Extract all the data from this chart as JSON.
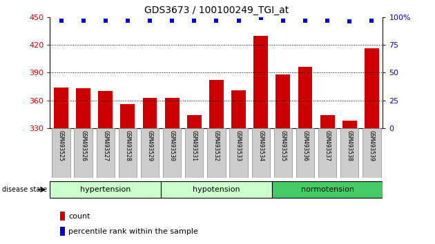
{
  "title": "GDS3673 / 100100249_TGI_at",
  "samples": [
    "GSM493525",
    "GSM493526",
    "GSM493527",
    "GSM493528",
    "GSM493529",
    "GSM493530",
    "GSM493531",
    "GSM493532",
    "GSM493533",
    "GSM493534",
    "GSM493535",
    "GSM493536",
    "GSM493537",
    "GSM493538",
    "GSM493539"
  ],
  "counts": [
    374,
    373,
    370,
    356,
    363,
    363,
    344,
    382,
    371,
    430,
    388,
    396,
    344,
    338,
    416
  ],
  "percentile_ranks": [
    97,
    97,
    97,
    97,
    97,
    97,
    97,
    97,
    97,
    99,
    97,
    97,
    97,
    96,
    97
  ],
  "ylim_left": [
    330,
    450
  ],
  "ylim_right": [
    0,
    100
  ],
  "yticks_left": [
    330,
    360,
    390,
    420,
    450
  ],
  "yticks_right": [
    0,
    25,
    50,
    75,
    100
  ],
  "bar_color": "#cc0000",
  "dot_color": "#0000cc",
  "group_boundaries": [
    [
      0,
      5,
      "hypertension",
      "#ccffcc"
    ],
    [
      5,
      10,
      "hypotension",
      "#ccffcc"
    ],
    [
      10,
      15,
      "normotension",
      "#44cc66"
    ]
  ],
  "tick_label_bg": "#cccccc",
  "bar_width": 0.65
}
